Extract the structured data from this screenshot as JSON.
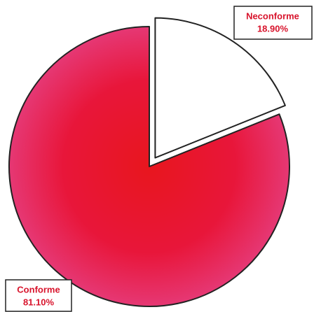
{
  "chart_data": {
    "type": "pie",
    "categories": [
      "Neconforme",
      "Conforme"
    ],
    "values": [
      18.9,
      81.1
    ],
    "value_labels": [
      "18.90%",
      "81.10%"
    ],
    "colors": [
      "#ffffff",
      "#e8163a"
    ]
  }
}
